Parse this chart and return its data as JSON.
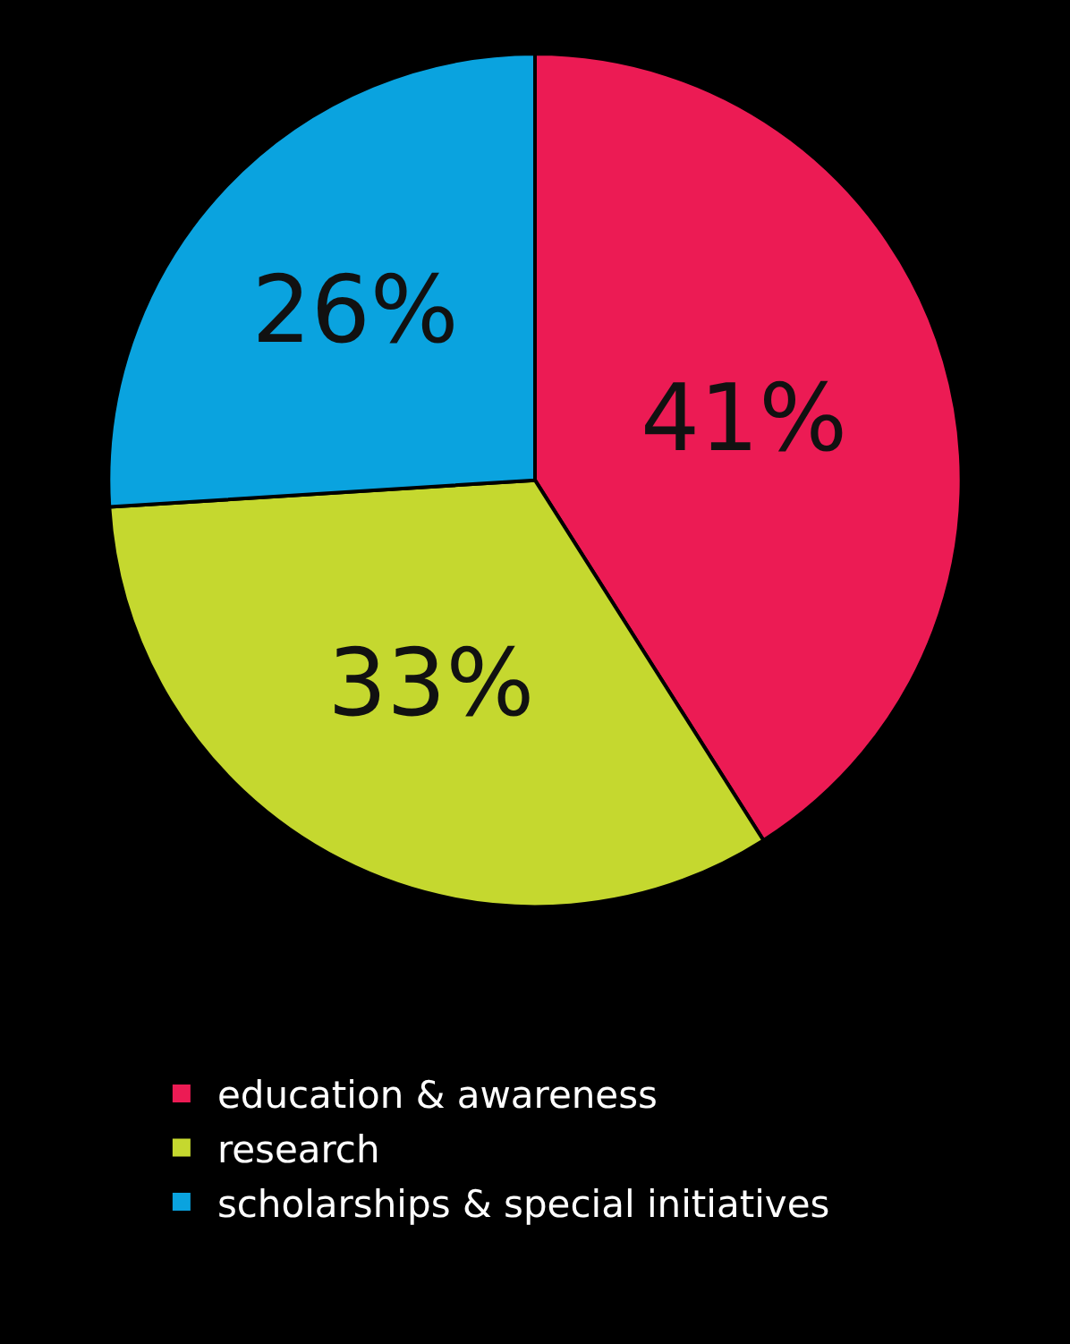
{
  "chart_data": {
    "type": "pie",
    "categories": [
      "education & awareness",
      "research",
      "scholarships & special initiatives"
    ],
    "values": [
      41,
      33,
      26
    ],
    "colors": [
      "#ec1b54",
      "#c5d82f",
      "#0aa3df"
    ],
    "value_labels": [
      "41%",
      "33%",
      "26%"
    ],
    "legend": "bottom"
  }
}
